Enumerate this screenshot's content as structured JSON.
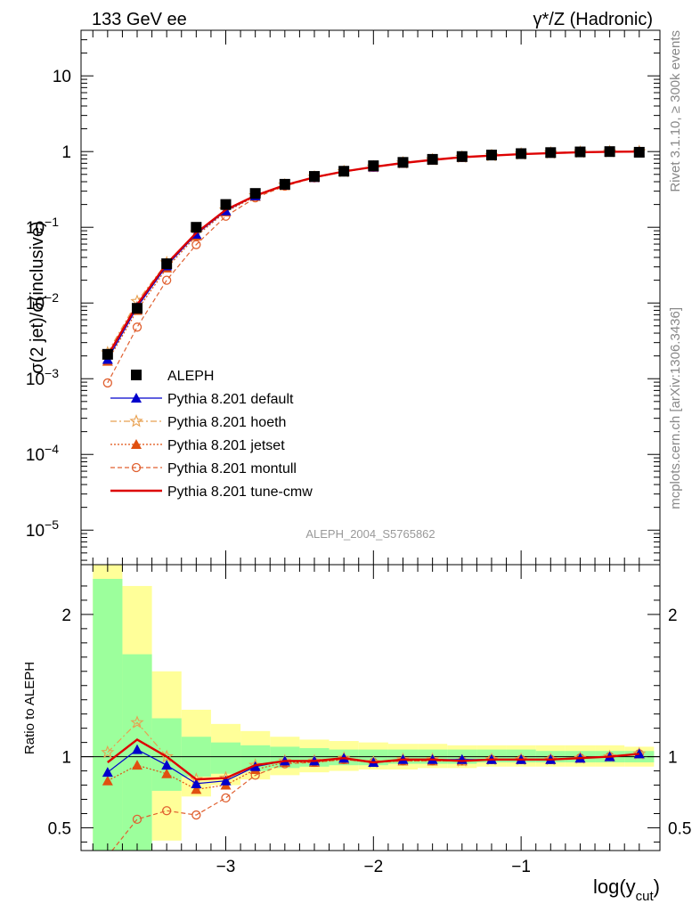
{
  "header": {
    "left_title": "133 GeV ee",
    "right_title": "γ*/Z (Hadronic)"
  },
  "side_labels": {
    "rivet": "Rivet 3.1.10, ≥ 300k events",
    "mcplots": "mcplots.cern.ch [arXiv:1306.3436]"
  },
  "watermark": "ALEPH_2004_S5765862",
  "colors": {
    "data": "#000000",
    "default": "#0000cc",
    "hoeth": "#e8a050",
    "jetset": "#e05010",
    "montull": "#e06030",
    "tunecmw": "#dd0000",
    "band_inner": "#9cff9c",
    "band_outer": "#ffff99"
  },
  "chart_data": [
    {
      "type": "line",
      "panel": "main",
      "ylabel": "σ(2 jet)/σ(inclusive)",
      "yscale": "log",
      "ylim": [
        3.5e-06,
        40
      ],
      "xlim": [
        -3.98,
        -0.06
      ],
      "ytick_labels": [
        {
          "value": 10,
          "base": "10",
          "exp": ""
        },
        {
          "value": 1,
          "base": "1",
          "exp": ""
        },
        {
          "value": 0.1,
          "base": "10",
          "exp": "−1"
        },
        {
          "value": 0.01,
          "base": "10",
          "exp": "−2"
        },
        {
          "value": 0.001,
          "base": "10",
          "exp": "−3"
        },
        {
          "value": 0.0001,
          "base": "10",
          "exp": "−4"
        },
        {
          "value": 1e-05,
          "base": "10",
          "exp": "−5"
        }
      ],
      "legend_position": "bottom-left",
      "x": [
        -3.8,
        -3.6,
        -3.4,
        -3.2,
        -3.0,
        -2.8,
        -2.6,
        -2.4,
        -2.2,
        -2.0,
        -1.8,
        -1.6,
        -1.4,
        -1.2,
        -1.0,
        -0.8,
        -0.6,
        -0.4,
        -0.2
      ],
      "series": [
        {
          "name": "ALEPH",
          "key": "data",
          "values": [
            0.0021,
            0.0085,
            0.033,
            0.1,
            0.2,
            0.28,
            0.37,
            0.47,
            0.55,
            0.65,
            0.72,
            0.79,
            0.86,
            0.9,
            0.94,
            0.97,
            0.99,
            1.0,
            0.98
          ]
        },
        {
          "name": "Pythia 8.201 default",
          "key": "default",
          "values": [
            0.0018,
            0.0088,
            0.031,
            0.081,
            0.165,
            0.26,
            0.36,
            0.455,
            0.545,
            0.625,
            0.705,
            0.775,
            0.84,
            0.885,
            0.925,
            0.955,
            0.98,
            0.995,
            1.0
          ]
        },
        {
          "name": "Pythia 8.201 hoeth",
          "key": "hoeth",
          "values": [
            0.0022,
            0.0105,
            0.034,
            0.085,
            0.17,
            0.262,
            0.362,
            0.46,
            0.545,
            0.628,
            0.708,
            0.778,
            0.842,
            0.886,
            0.926,
            0.956,
            0.98,
            0.995,
            1.0
          ]
        },
        {
          "name": "Pythia 8.201 jetset",
          "key": "jetset",
          "values": [
            0.0017,
            0.008,
            0.029,
            0.077,
            0.16,
            0.255,
            0.356,
            0.452,
            0.54,
            0.62,
            0.7,
            0.77,
            0.836,
            0.882,
            0.922,
            0.953,
            0.978,
            0.994,
            0.999
          ]
        },
        {
          "name": "Pythia 8.201 montull",
          "key": "montull",
          "values": [
            0.00088,
            0.0048,
            0.02,
            0.059,
            0.14,
            0.245,
            0.35,
            0.45,
            0.54,
            0.62,
            0.7,
            0.77,
            0.836,
            0.882,
            0.922,
            0.953,
            0.978,
            0.994,
            0.999
          ]
        },
        {
          "name": "Pythia 8.201 tune-cmw",
          "key": "tunecmw",
          "values": [
            0.002,
            0.0095,
            0.033,
            0.084,
            0.17,
            0.262,
            0.36,
            0.458,
            0.546,
            0.627,
            0.707,
            0.777,
            0.842,
            0.885,
            0.925,
            0.955,
            0.98,
            0.995,
            1.0
          ]
        }
      ]
    },
    {
      "type": "line",
      "panel": "ratio",
      "ylabel": "Ratio to ALEPH",
      "ylim": [
        0.34,
        2.35
      ],
      "xlim": [
        -3.98,
        -0.06
      ],
      "yticks": [
        0.5,
        1,
        2
      ],
      "xtick_labels": [
        {
          "value": -3,
          "label": "−3"
        },
        {
          "value": -2,
          "label": "−2"
        },
        {
          "value": -1,
          "label": "−1"
        }
      ],
      "xlabel_main": "log(y",
      "xlabel_sub": "cut",
      "xlabel_end": ")",
      "x": [
        -3.8,
        -3.6,
        -3.4,
        -3.2,
        -3.0,
        -2.8,
        -2.6,
        -2.4,
        -2.2,
        -2.0,
        -1.8,
        -1.6,
        -1.4,
        -1.2,
        -1.0,
        -0.8,
        -0.6,
        -0.4,
        -0.2
      ],
      "bin_edges": [
        -3.9,
        -3.7,
        -3.5,
        -3.3,
        -3.1,
        -2.9,
        -2.7,
        -2.5,
        -2.3,
        -2.1,
        -1.9,
        -1.7,
        -1.5,
        -1.3,
        -1.1,
        -0.9,
        -0.7,
        -0.5,
        -0.3,
        -0.1
      ],
      "band_inner": [
        [
          0.0,
          2.25
        ],
        [
          0.3,
          1.72
        ],
        [
          0.76,
          1.27
        ],
        [
          0.86,
          1.14
        ],
        [
          0.88,
          1.1
        ],
        [
          0.9,
          1.08
        ],
        [
          0.92,
          1.07
        ],
        [
          0.93,
          1.06
        ],
        [
          0.94,
          1.05
        ],
        [
          0.94,
          1.05
        ],
        [
          0.95,
          1.05
        ],
        [
          0.95,
          1.05
        ],
        [
          0.95,
          1.05
        ],
        [
          0.96,
          1.05
        ],
        [
          0.96,
          1.05
        ],
        [
          0.96,
          1.04
        ],
        [
          0.96,
          1.04
        ],
        [
          0.96,
          1.04
        ],
        [
          0.96,
          1.04
        ]
      ],
      "band_outer": [
        [
          0.0,
          2.45
        ],
        [
          0.0,
          2.2
        ],
        [
          0.41,
          1.6
        ],
        [
          0.72,
          1.33
        ],
        [
          0.8,
          1.23
        ],
        [
          0.84,
          1.18
        ],
        [
          0.87,
          1.14
        ],
        [
          0.89,
          1.12
        ],
        [
          0.9,
          1.11
        ],
        [
          0.91,
          1.1
        ],
        [
          0.91,
          1.09
        ],
        [
          0.92,
          1.09
        ],
        [
          0.92,
          1.08
        ],
        [
          0.93,
          1.08
        ],
        [
          0.93,
          1.08
        ],
        [
          0.93,
          1.08
        ],
        [
          0.93,
          1.08
        ],
        [
          0.93,
          1.08
        ],
        [
          0.93,
          1.07
        ]
      ],
      "series": [
        {
          "name": "Pythia 8.201 default",
          "key": "default",
          "values": [
            0.89,
            1.05,
            0.94,
            0.81,
            0.83,
            0.93,
            0.97,
            0.97,
            0.99,
            0.96,
            0.98,
            0.98,
            0.98,
            0.98,
            0.98,
            0.98,
            0.99,
            1.0,
            1.02
          ]
        },
        {
          "name": "Pythia 8.201 hoeth",
          "key": "hoeth",
          "values": [
            1.03,
            1.24,
            1.0,
            0.84,
            0.85,
            0.94,
            0.97,
            0.97,
            0.99,
            0.96,
            0.98,
            0.98,
            0.97,
            0.98,
            0.98,
            0.98,
            0.99,
            1.0,
            1.02
          ]
        },
        {
          "name": "Pythia 8.201 jetset",
          "key": "jetset",
          "values": [
            0.83,
            0.94,
            0.88,
            0.77,
            0.8,
            0.91,
            0.96,
            0.96,
            0.98,
            0.96,
            0.97,
            0.97,
            0.97,
            0.98,
            0.98,
            0.98,
            0.99,
            1.0,
            1.02
          ]
        },
        {
          "name": "Pythia 8.201 montull",
          "key": "montull",
          "values": [
            0.3,
            0.56,
            0.62,
            0.59,
            0.71,
            0.87,
            0.95,
            0.96,
            0.98,
            0.96,
            0.97,
            0.97,
            0.97,
            0.98,
            0.98,
            0.98,
            0.99,
            1.0,
            1.02
          ]
        },
        {
          "name": "Pythia 8.201 tune-cmw",
          "key": "tunecmw",
          "values": [
            0.96,
            1.12,
            1.0,
            0.84,
            0.85,
            0.94,
            0.97,
            0.97,
            0.99,
            0.96,
            0.98,
            0.98,
            0.97,
            0.98,
            0.98,
            0.98,
            0.99,
            1.0,
            1.02
          ]
        }
      ]
    }
  ]
}
